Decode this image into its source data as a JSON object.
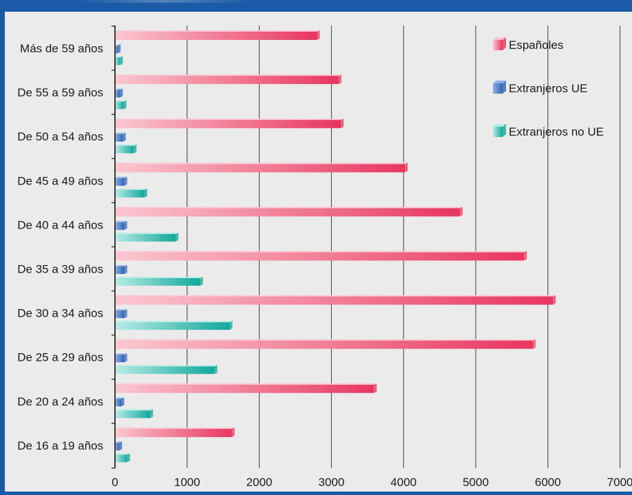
{
  "chart_data": {
    "type": "bar",
    "orientation": "horizontal",
    "categories": [
      "Más de 59 años",
      "De 55 a 59 años",
      "De 50 a 54 años",
      "De 45 a 49 años",
      "De 40 a 44 años",
      "De 35 a 39 años",
      "De 30 a 34 años",
      "De 25 a 29 años",
      "De 20 a 24 años",
      "De 16 a 19 años"
    ],
    "series": [
      {
        "name": "Españoles",
        "color": "#e8365f",
        "light": "#fbc7d2",
        "values": [
          2800,
          3100,
          3130,
          4020,
          4780,
          5670,
          6070,
          5790,
          3590,
          1620
        ]
      },
      {
        "name": "Extranjeros UE",
        "color": "#2f64b4",
        "light": "#8fb2e6",
        "values": [
          40,
          70,
          110,
          130,
          130,
          130,
          130,
          130,
          90,
          60
        ]
      },
      {
        "name": "Extranjeros no UE",
        "color": "#12a89a",
        "light": "#b8ece6",
        "values": [
          70,
          120,
          260,
          410,
          840,
          1180,
          1590,
          1380,
          490,
          170
        ]
      }
    ],
    "x_ticks": [
      0,
      1000,
      2000,
      3000,
      4000,
      5000,
      6000,
      7000
    ],
    "xlim": [
      0,
      7000
    ],
    "grid": true,
    "legend_position": "top-right",
    "title": "",
    "xlabel": "",
    "ylabel": ""
  }
}
